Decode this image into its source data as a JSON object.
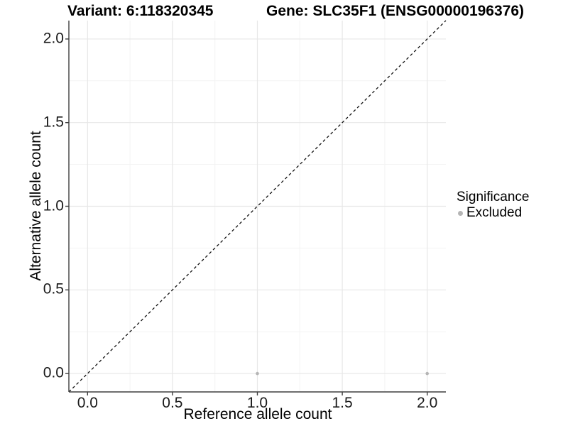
{
  "header": {
    "variant_title": "Variant: 6:118320345",
    "gene_title": "Gene: SLC35F1 (ENSG00000196376)"
  },
  "legend": {
    "title": "Significance",
    "items": [
      {
        "label": "Excluded",
        "marker": "circle",
        "color": "#b5b5b5"
      }
    ]
  },
  "chart_data": {
    "type": "scatter",
    "title_left": "Variant: 6:118320345",
    "title_right": "Gene: SLC35F1 (ENSG00000196376)",
    "xlabel": "Reference allele count",
    "ylabel": "Alternative allele count",
    "xlim": [
      -0.11,
      2.11
    ],
    "ylim": [
      -0.11,
      2.11
    ],
    "x_ticks": {
      "values": [
        0,
        0.5,
        1,
        1.5,
        2
      ],
      "labels": [
        "0.0",
        "0.5",
        "1.0",
        "1.5",
        "2.0"
      ]
    },
    "y_ticks": {
      "values": [
        0,
        0.5,
        1,
        1.5,
        2
      ],
      "labels": [
        "0.0",
        "0.5",
        "1.0",
        "1.5",
        "2.0"
      ]
    },
    "grid": {
      "major": true,
      "minor": true
    },
    "series": [
      {
        "name": "Excluded",
        "color": "#b5b5b5",
        "points": [
          {
            "x": 1.0,
            "y": 0.0
          },
          {
            "x": 2.0,
            "y": 0.0
          }
        ]
      }
    ],
    "reference_line": {
      "type": "identity y = x",
      "style": "dashed",
      "color": "#111111",
      "from": [
        -0.11,
        -0.11
      ],
      "to": [
        2.11,
        2.11
      ]
    },
    "legend_position": "right",
    "legend_title": "Significance"
  },
  "colors": {
    "background": "#ffffff",
    "grid_major": "#e7e7e7",
    "grid_minor": "#f3f3f3",
    "axis_line": "#3f3f3f",
    "text": "#000000",
    "tick_text": "#1a1a1a",
    "point": "#b5b5b5",
    "reference_line": "#111111"
  }
}
